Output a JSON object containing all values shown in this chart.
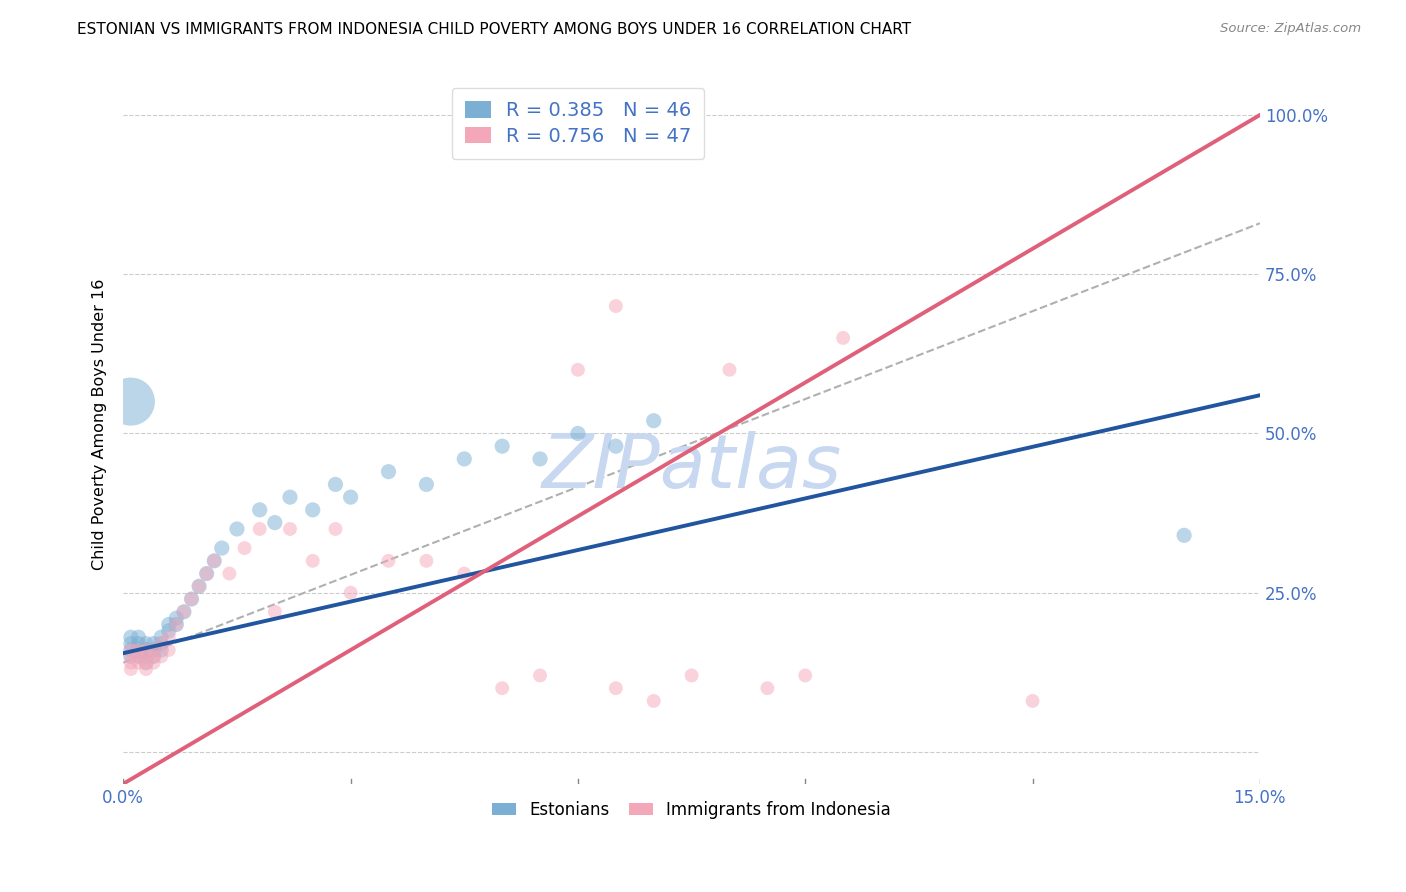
{
  "title": "ESTONIAN VS IMMIGRANTS FROM INDONESIA CHILD POVERTY AMONG BOYS UNDER 16 CORRELATION CHART",
  "source": "Source: ZipAtlas.com",
  "tick_color": "#4472c4",
  "ylabel": "Child Poverty Among Boys Under 16",
  "xlim": [
    0.0,
    0.15
  ],
  "ylim": [
    -0.05,
    1.08
  ],
  "xticks": [
    0.0,
    0.03,
    0.06,
    0.09,
    0.12,
    0.15
  ],
  "xtick_labels": [
    "0.0%",
    "",
    "",
    "",
    "",
    "15.0%"
  ],
  "ytick_positions": [
    0.0,
    0.25,
    0.5,
    0.75,
    1.0
  ],
  "ytick_labels": [
    "",
    "25.0%",
    "50.0%",
    "75.0%",
    "100.0%"
  ],
  "color_blue": "#7bafd4",
  "color_pink": "#f4a7b9",
  "line_blue": "#2255a0",
  "line_pink": "#e0607a",
  "watermark": "ZIPatlas",
  "watermark_color": "#c8d8f0",
  "blue_x": [
    0.001,
    0.001,
    0.001,
    0.001,
    0.002,
    0.002,
    0.002,
    0.002,
    0.003,
    0.003,
    0.003,
    0.003,
    0.003,
    0.004,
    0.004,
    0.004,
    0.005,
    0.005,
    0.005,
    0.006,
    0.006,
    0.007,
    0.007,
    0.008,
    0.009,
    0.01,
    0.011,
    0.012,
    0.013,
    0.015,
    0.018,
    0.02,
    0.022,
    0.025,
    0.028,
    0.03,
    0.035,
    0.04,
    0.045,
    0.05,
    0.055,
    0.06,
    0.065,
    0.07,
    0.001,
    0.14
  ],
  "blue_y": [
    0.16,
    0.17,
    0.15,
    0.18,
    0.16,
    0.17,
    0.15,
    0.18,
    0.16,
    0.17,
    0.15,
    0.16,
    0.14,
    0.17,
    0.16,
    0.15,
    0.17,
    0.16,
    0.18,
    0.2,
    0.19,
    0.21,
    0.2,
    0.22,
    0.24,
    0.26,
    0.28,
    0.3,
    0.32,
    0.35,
    0.38,
    0.36,
    0.4,
    0.38,
    0.42,
    0.4,
    0.44,
    0.42,
    0.46,
    0.48,
    0.46,
    0.5,
    0.48,
    0.52,
    0.55,
    0.34
  ],
  "blue_sizes": [
    20,
    20,
    20,
    20,
    20,
    20,
    20,
    20,
    20,
    20,
    20,
    20,
    20,
    20,
    20,
    20,
    20,
    20,
    20,
    20,
    20,
    20,
    20,
    20,
    20,
    20,
    20,
    20,
    20,
    20,
    20,
    20,
    20,
    20,
    20,
    20,
    20,
    20,
    20,
    20,
    20,
    20,
    20,
    20,
    200,
    20
  ],
  "pink_x": [
    0.001,
    0.001,
    0.001,
    0.001,
    0.002,
    0.002,
    0.002,
    0.003,
    0.003,
    0.003,
    0.003,
    0.004,
    0.004,
    0.004,
    0.005,
    0.005,
    0.006,
    0.006,
    0.007,
    0.008,
    0.009,
    0.01,
    0.011,
    0.012,
    0.014,
    0.016,
    0.018,
    0.02,
    0.022,
    0.025,
    0.028,
    0.03,
    0.035,
    0.04,
    0.045,
    0.05,
    0.055,
    0.06,
    0.065,
    0.07,
    0.075,
    0.08,
    0.085,
    0.09,
    0.095,
    0.065,
    0.12
  ],
  "pink_y": [
    0.14,
    0.15,
    0.16,
    0.13,
    0.15,
    0.14,
    0.16,
    0.14,
    0.15,
    0.16,
    0.13,
    0.15,
    0.14,
    0.16,
    0.15,
    0.17,
    0.18,
    0.16,
    0.2,
    0.22,
    0.24,
    0.26,
    0.28,
    0.3,
    0.28,
    0.32,
    0.35,
    0.22,
    0.35,
    0.3,
    0.35,
    0.25,
    0.3,
    0.3,
    0.28,
    0.1,
    0.12,
    0.6,
    0.1,
    0.08,
    0.12,
    0.6,
    0.1,
    0.12,
    0.65,
    0.7,
    0.08
  ],
  "blue_regression": {
    "slope": 2.7,
    "intercept": 0.155
  },
  "pink_regression": {
    "slope": 7.0,
    "intercept": -0.05
  },
  "ref_line": {
    "x0": 0.0,
    "y0": 0.14,
    "x1": 0.15,
    "y1": 0.83
  }
}
